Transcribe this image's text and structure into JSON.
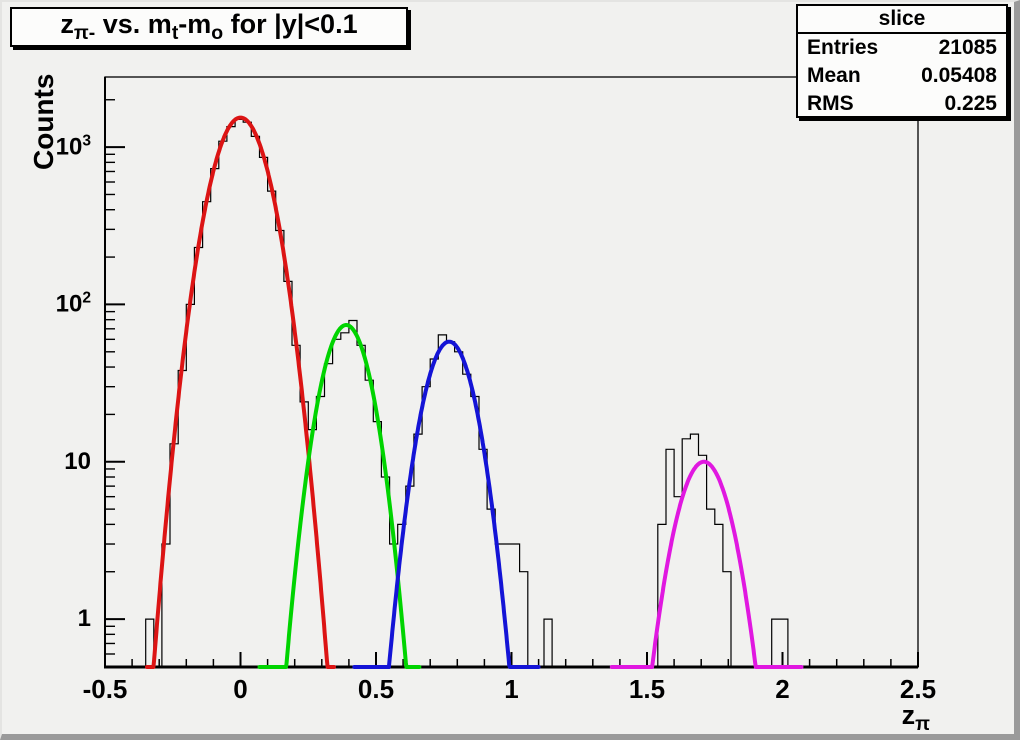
{
  "window": {
    "kind": "ROOT canvas plot"
  },
  "colors": {
    "canvas_background": "#f1f1ef",
    "pave_background": "#fcfcfb",
    "frame_line": "#000000",
    "histogram_line": "#000000",
    "border_shadow": "#9a9a9a"
  },
  "chart_data": {
    "type": "bar",
    "subtype": "step-histogram-with-gaussian-fits",
    "title": "z_π- vs. m_t-m_o for |y|<0.1",
    "title_parts": [
      {
        "t": "z"
      },
      {
        "s": "π-"
      },
      {
        "t": " vs. m"
      },
      {
        "s": "t"
      },
      {
        "t": "-m"
      },
      {
        "s": "o"
      },
      {
        "t": " for |y|<0.1"
      }
    ],
    "xlabel": "z_π",
    "x_title_parts": [
      {
        "t": "z"
      },
      {
        "s": "π"
      }
    ],
    "ylabel": "Counts",
    "xlim": [
      -0.5,
      2.5
    ],
    "ylim": [
      0.496,
      2790
    ],
    "ylog": true,
    "grid": false,
    "x_major_ticks": [
      {
        "v": -0.5,
        "label": "-0.5"
      },
      {
        "v": 0,
        "label": "0"
      },
      {
        "v": 0.5,
        "label": "0.5"
      },
      {
        "v": 1,
        "label": "1"
      },
      {
        "v": 1.5,
        "label": "1.5"
      },
      {
        "v": 2,
        "label": "2"
      },
      {
        "v": 2.5,
        "label": "2.5"
      }
    ],
    "x_minor_step": 0.1,
    "y_major_ticks": [
      {
        "v": 1,
        "label": "1"
      },
      {
        "v": 10,
        "label": "10"
      },
      {
        "v": 100,
        "label": "10",
        "sup": "2"
      },
      {
        "v": 1000,
        "label": "10",
        "sup": "3"
      }
    ],
    "bins": {
      "start": -0.5,
      "width": 0.03,
      "counts": [
        0,
        0,
        0,
        0,
        0,
        1,
        0,
        3,
        13,
        38,
        100,
        230,
        450,
        730,
        1090,
        1350,
        1500,
        1440,
        1170,
        860,
        525,
        295,
        140,
        55,
        24,
        16,
        26,
        42,
        60,
        66,
        79,
        55,
        33,
        18,
        8,
        3,
        4,
        7,
        15,
        30,
        45,
        64,
        58,
        50,
        36,
        26,
        12,
        5,
        3,
        3,
        3,
        2,
        0,
        0,
        1,
        0,
        0,
        0,
        0,
        0,
        0,
        0,
        0,
        0,
        0,
        0,
        0,
        0,
        4,
        12,
        6,
        14,
        15,
        11,
        5,
        4,
        2,
        0,
        0,
        0,
        0,
        0,
        1,
        1,
        0,
        0,
        0,
        0,
        0,
        0,
        0,
        0,
        0,
        0,
        0,
        0,
        0,
        0,
        0,
        0
      ]
    },
    "fits": [
      {
        "name": "red-fit",
        "color": "#dc1414",
        "amplitude": 1540,
        "mean": 0.0,
        "sigma": 0.08,
        "range": [
          -0.345,
          0.345
        ]
      },
      {
        "name": "green-fit",
        "color": "#00d400",
        "amplitude": 74,
        "mean": 0.39,
        "sigma": 0.07,
        "range": [
          0.07,
          0.66
        ]
      },
      {
        "name": "blue-fit",
        "color": "#1414d6",
        "amplitude": 58,
        "mean": 0.77,
        "sigma": 0.072,
        "range": [
          0.42,
          1.1
        ]
      },
      {
        "name": "magenta-fit",
        "color": "#e018e0",
        "amplitude": 10,
        "mean": 1.71,
        "sigma": 0.078,
        "range": [
          1.37,
          2.07
        ]
      }
    ],
    "stats": {
      "title": "slice",
      "rows": [
        {
          "label": "Entries",
          "value": "21085"
        },
        {
          "label": "Mean",
          "value": "0.05408"
        },
        {
          "label": "RMS",
          "value": "0.225"
        }
      ]
    }
  }
}
